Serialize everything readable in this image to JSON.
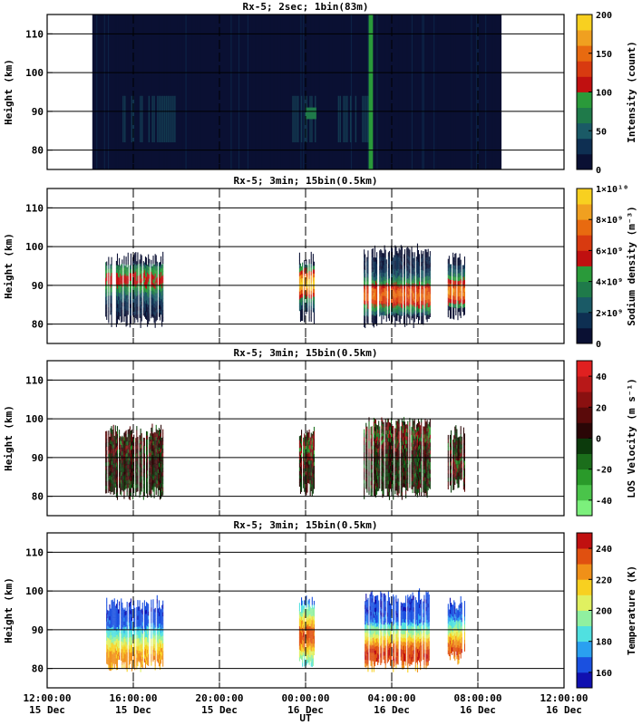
{
  "figure": {
    "x_axis_label": "UT",
    "x_ticks": [
      {
        "t": 12,
        "time": "12:00:00",
        "date": "15 Dec"
      },
      {
        "t": 16,
        "time": "16:00:00",
        "date": "15 Dec"
      },
      {
        "t": 20,
        "time": "20:00:00",
        "date": "15 Dec"
      },
      {
        "t": 24,
        "time": "00:00:00",
        "date": "16 Dec"
      },
      {
        "t": 28,
        "time": "04:00:00",
        "date": "16 Dec"
      },
      {
        "t": 32,
        "time": "08:00:00",
        "date": "16 Dec"
      },
      {
        "t": 36,
        "time": "12:00:00",
        "date": "16 Dec"
      }
    ]
  },
  "chart_data": [
    {
      "type": "heatmap",
      "title": "Rx-5;  2sec; 1bin(83m)",
      "ylabel": "Height (km)",
      "xlim": [
        12,
        36
      ],
      "ylim": [
        75,
        115
      ],
      "y_ticks": [
        80,
        90,
        100,
        110
      ],
      "colorbar": {
        "label": "Intensity (count)",
        "range": [
          0,
          200
        ],
        "ticks": [
          {
            "v": 0,
            "label": "0"
          },
          {
            "v": 50,
            "label": "50"
          },
          {
            "v": 100,
            "label": "100"
          },
          {
            "v": 150,
            "label": "150"
          },
          {
            "v": 200,
            "label": "200"
          }
        ],
        "colors": [
          "#0a1033",
          "#0e2f52",
          "#1a5a66",
          "#1f7a4a",
          "#2a9a3a",
          "#c01010",
          "#d83a10",
          "#e86a10",
          "#f0a020",
          "#f8d020"
        ]
      },
      "data_extent": [
        14.1,
        33.1
      ],
      "features": [
        {
          "x": 26.93,
          "width": 0.2,
          "y0": 75,
          "y1": 115,
          "level": 90,
          "kind": "bright-band"
        },
        {
          "x": 24.0,
          "width": 0.5,
          "y0": 88,
          "y1": 91,
          "level": 60,
          "kind": "layer"
        }
      ]
    },
    {
      "type": "heatmap",
      "title": "Rx-5; 3min; 15bin(0.5km)",
      "ylabel": "Height (km)",
      "xlim": [
        12,
        36
      ],
      "ylim": [
        75,
        115
      ],
      "y_ticks": [
        80,
        90,
        100,
        110
      ],
      "colorbar": {
        "label": "Sodium density (m⁻³)",
        "range": [
          0,
          10
        ],
        "ticks": [
          {
            "v": 0,
            "label": "0"
          },
          {
            "v": 2,
            "label": "2×10⁹"
          },
          {
            "v": 4,
            "label": "4×10⁹"
          },
          {
            "v": 6,
            "label": "6×10⁹"
          },
          {
            "v": 8,
            "label": "8×10⁹"
          },
          {
            "v": 10,
            "label": "1×10¹⁰"
          }
        ],
        "colors": [
          "#0a1033",
          "#0e2f52",
          "#1a5a66",
          "#1f7a4a",
          "#2a9a3a",
          "#c01010",
          "#d83a10",
          "#e86a10",
          "#f0a020",
          "#f8d020"
        ]
      },
      "blocks": [
        {
          "t0": 14.7,
          "t1": 17.4,
          "z0": 79,
          "z1": 98,
          "peak_z": 91,
          "peak_v": 4.5
        },
        {
          "t0": 23.7,
          "t1": 24.4,
          "z0": 80,
          "z1": 98,
          "peak_z": 90,
          "peak_v": 8.5
        },
        {
          "t0": 26.7,
          "t1": 29.8,
          "z0": 79,
          "z1": 100,
          "peak_z": 87,
          "peak_v": 6.5
        },
        {
          "t0": 30.6,
          "t1": 31.4,
          "z0": 81,
          "z1": 98,
          "peak_z": 88,
          "peak_v": 7.0
        }
      ]
    },
    {
      "type": "heatmap",
      "title": "Rx-5; 3min; 15bin(0.5km)",
      "ylabel": "Height (km)",
      "xlim": [
        12,
        36
      ],
      "ylim": [
        75,
        115
      ],
      "y_ticks": [
        80,
        90,
        100,
        110
      ],
      "colorbar": {
        "label": "LOS Velocity (m s⁻¹)",
        "range": [
          -50,
          50
        ],
        "ticks": [
          {
            "v": -40,
            "label": "-40"
          },
          {
            "v": -20,
            "label": "-20"
          },
          {
            "v": 0,
            "label": "0"
          },
          {
            "v": 20,
            "label": "20"
          },
          {
            "v": 40,
            "label": "40"
          }
        ],
        "colors": [
          "#7cf07c",
          "#4ac44a",
          "#2a9a2a",
          "#1b6e1b",
          "#0c3a0c",
          "#2a0606",
          "#5a0a0a",
          "#8a1010",
          "#b81818",
          "#e02020"
        ]
      },
      "blocks": [
        {
          "t0": 14.7,
          "t1": 17.4,
          "z0": 79,
          "z1": 98,
          "peak_z": 93,
          "peak_v": 12
        },
        {
          "t0": 23.7,
          "t1": 24.4,
          "z0": 80,
          "z1": 98,
          "peak_z": 92,
          "peak_v": 25
        },
        {
          "t0": 26.7,
          "t1": 29.8,
          "z0": 79,
          "z1": 100,
          "peak_z": 95,
          "peak_v": 20
        },
        {
          "t0": 30.6,
          "t1": 31.4,
          "z0": 81,
          "z1": 98,
          "peak_z": 88,
          "peak_v": 15
        }
      ]
    },
    {
      "type": "heatmap",
      "title": "Rx-5; 3min; 15bin(0.5km)",
      "ylabel": "Height (km)",
      "xlim": [
        12,
        36
      ],
      "ylim": [
        75,
        115
      ],
      "y_ticks": [
        80,
        90,
        100,
        110
      ],
      "colorbar": {
        "label": "Temperature (K)",
        "range": [
          150,
          250
        ],
        "ticks": [
          {
            "v": 160,
            "label": "160"
          },
          {
            "v": 180,
            "label": "180"
          },
          {
            "v": 200,
            "label": "200"
          },
          {
            "v": 220,
            "label": "220"
          },
          {
            "v": 240,
            "label": "240"
          }
        ],
        "colors": [
          "#1010b0",
          "#1a50e0",
          "#2aa0f0",
          "#50e0e0",
          "#90f0a0",
          "#e0f060",
          "#f8d020",
          "#f09018",
          "#e05010",
          "#c01010"
        ]
      },
      "blocks": [
        {
          "t0": 14.7,
          "t1": 17.4,
          "z0": 79,
          "z1": 98,
          "peak_z": 82,
          "peak_v": 225
        },
        {
          "t0": 23.7,
          "t1": 24.4,
          "z0": 80,
          "z1": 98,
          "peak_z": 88,
          "peak_v": 235
        },
        {
          "t0": 26.7,
          "t1": 29.8,
          "z0": 79,
          "z1": 100,
          "peak_z": 83,
          "peak_v": 240
        },
        {
          "t0": 30.6,
          "t1": 31.4,
          "z0": 81,
          "z1": 98,
          "peak_z": 84,
          "peak_v": 235
        }
      ]
    }
  ]
}
